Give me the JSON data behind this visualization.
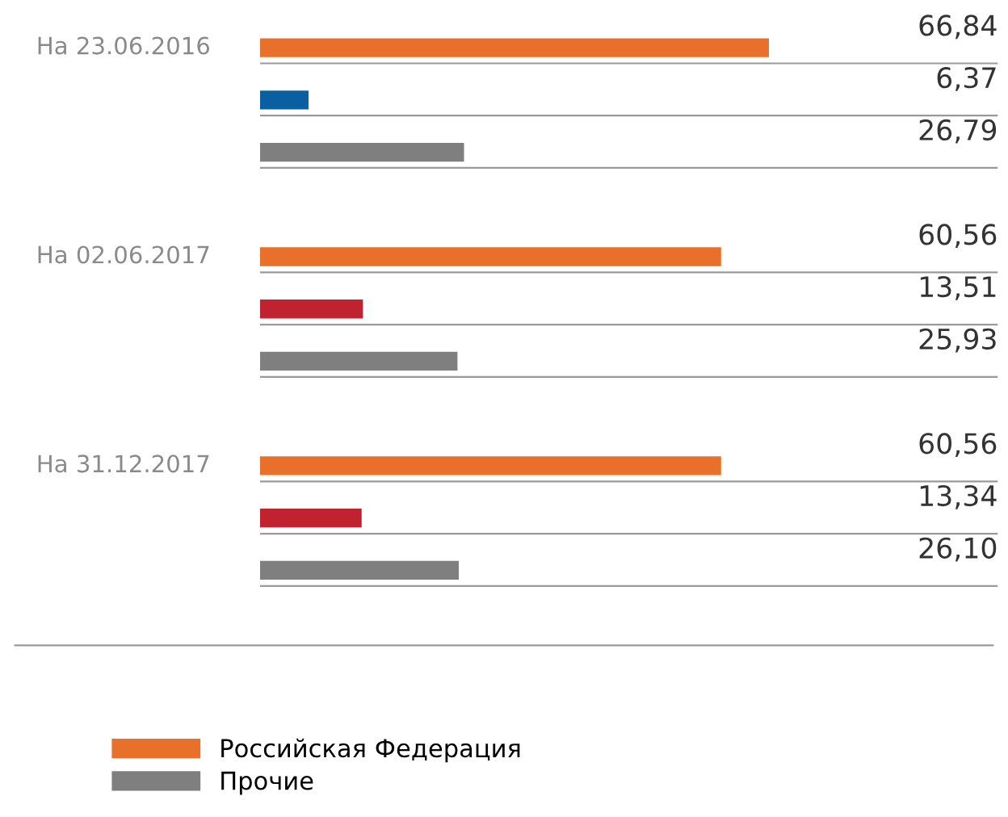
{
  "chart_data": {
    "type": "bar",
    "orientation": "horizontal",
    "categories": [
      "На 23.06.2016",
      null,
      null,
      null,
      "На 02.06.2017",
      null,
      null,
      null,
      "На 31.12.2017",
      null,
      null
    ],
    "series": [
      {
        "name": "Российская Федерация",
        "color": "#e8702a",
        "values": [
          66.84,
          null,
          null,
          null,
          60.56,
          null,
          null,
          null,
          60.56,
          null,
          null
        ],
        "value_labels": [
          "66,84",
          null,
          null,
          null,
          "60,56",
          null,
          null,
          null,
          "60,56",
          null,
          null
        ]
      },
      {
        "color": "#0a5fa0",
        "values": [
          null,
          6.37,
          null,
          null,
          null,
          null,
          null,
          null,
          null,
          null,
          null
        ],
        "value_labels": [
          null,
          "6,37",
          null,
          null,
          null,
          null,
          null,
          null,
          null,
          null,
          null
        ]
      },
      {
        "color": "#c0222f",
        "values": [
          null,
          null,
          null,
          null,
          null,
          13.51,
          null,
          null,
          null,
          13.34,
          null
        ],
        "value_labels": [
          null,
          null,
          null,
          null,
          null,
          "13,51",
          null,
          null,
          null,
          "13,34",
          null
        ]
      },
      {
        "name": "Прочие",
        "color": "#7f7f80",
        "values": [
          null,
          null,
          26.79,
          null,
          null,
          null,
          25.93,
          null,
          null,
          null,
          26.1
        ],
        "value_labels": [
          null,
          null,
          "26,79",
          null,
          null,
          null,
          "25,93",
          null,
          null,
          null,
          "26,10"
        ]
      }
    ],
    "grid": "y",
    "legend": "bottom",
    "tick_labels": "y"
  }
}
